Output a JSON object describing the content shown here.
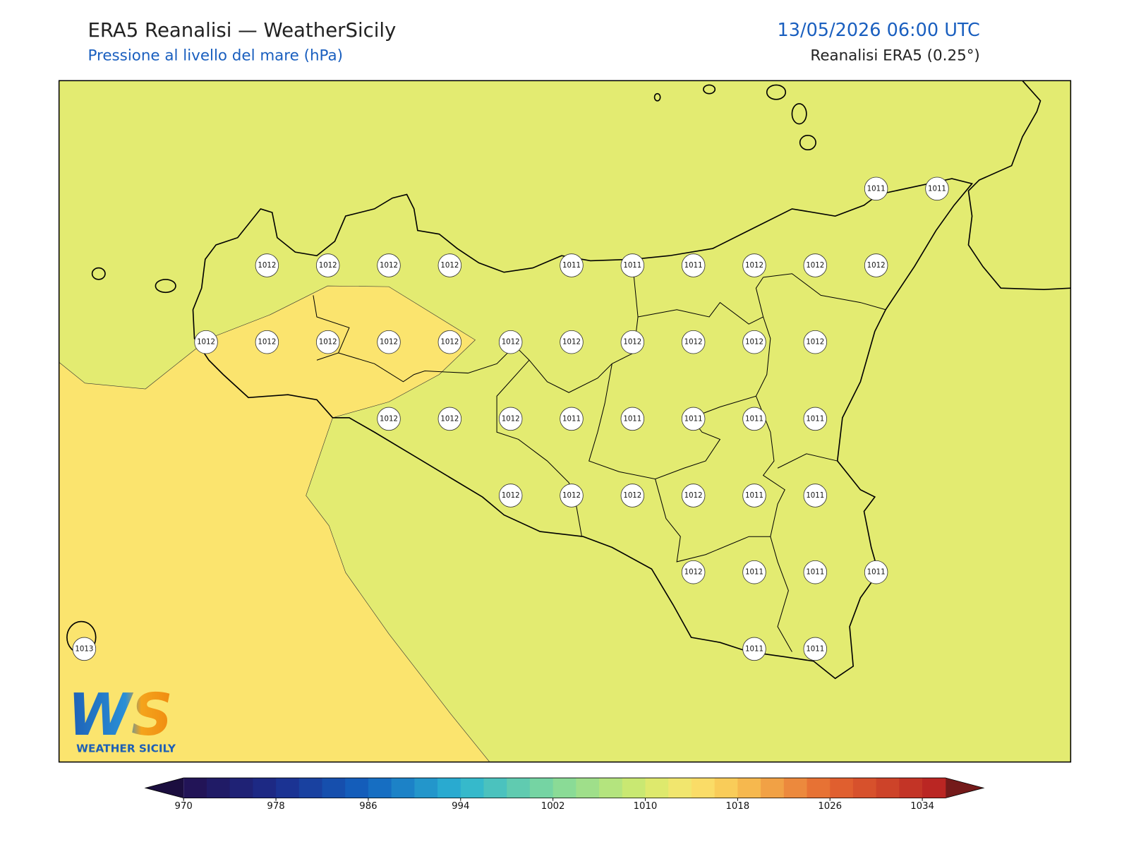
{
  "header": {
    "title": "ERA5 Reanalisi — WeatherSicily",
    "subtitle": "Pressione al livello del mare (hPa)",
    "datetime": "13/05/2026 06:00 UTC",
    "source": "Reanalisi ERA5 (0.25°)"
  },
  "stations": {
    "rows": [
      [
        null,
        null,
        null,
        null,
        null,
        null,
        null,
        null,
        null,
        null,
        null,
        null,
        null,
        1011,
        1011
      ],
      [
        null,
        null,
        null,
        1012,
        1012,
        1012,
        1012,
        null,
        1011,
        1011,
        1011,
        1012,
        1012,
        1012,
        null
      ],
      [
        null,
        null,
        1012,
        1012,
        1012,
        1012,
        1012,
        1012,
        1012,
        1012,
        1012,
        1012,
        1012,
        null,
        null
      ],
      [
        null,
        null,
        null,
        null,
        null,
        1012,
        1012,
        1012,
        1011,
        1011,
        1011,
        1011,
        1011,
        null,
        null
      ],
      [
        null,
        null,
        null,
        null,
        null,
        null,
        null,
        1012,
        1012,
        1012,
        1012,
        1011,
        1011,
        null,
        null
      ],
      [
        null,
        null,
        null,
        null,
        null,
        null,
        null,
        null,
        null,
        null,
        1012,
        1011,
        1011,
        1011,
        null
      ],
      [
        1013,
        null,
        null,
        null,
        null,
        null,
        null,
        null,
        null,
        null,
        null,
        1011,
        1011,
        null,
        null
      ]
    ]
  },
  "colorbar": {
    "range": [
      970,
      1036
    ],
    "step": 2,
    "ticks": [
      970,
      978,
      986,
      994,
      1002,
      1010,
      1018,
      1026,
      1034
    ],
    "under_color": "#1b0e3f",
    "over_color": "#741a1a",
    "color_stops": [
      {
        "value": 970,
        "color": "#23104f"
      },
      {
        "value": 978,
        "color": "#1c2c8c"
      },
      {
        "value": 986,
        "color": "#1364c0"
      },
      {
        "value": 994,
        "color": "#2cb4d2"
      },
      {
        "value": 1002,
        "color": "#7fd99c"
      },
      {
        "value": 1010,
        "color": "#d4ea6c"
      },
      {
        "value": 1014,
        "color": "#fbe46e"
      },
      {
        "value": 1018,
        "color": "#f8c452"
      },
      {
        "value": 1026,
        "color": "#e56630"
      },
      {
        "value": 1036,
        "color": "#b51f22"
      }
    ]
  },
  "logo": {
    "mark": "WS",
    "name": "WEATHER SICILY"
  }
}
